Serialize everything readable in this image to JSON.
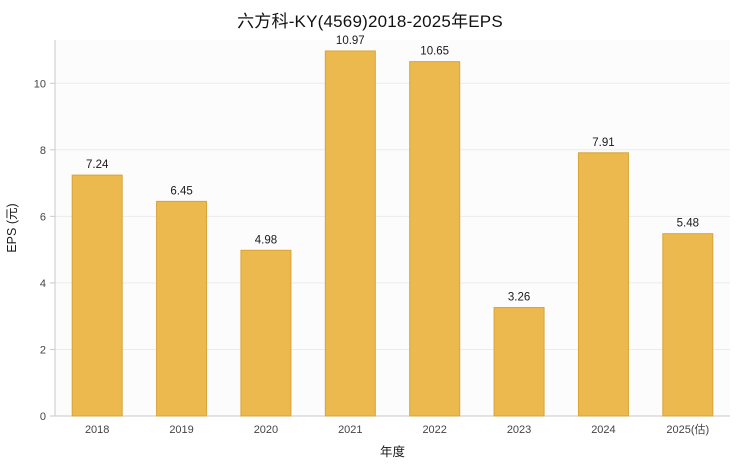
{
  "title": "六方科-KY(4569)2018-2025年EPS",
  "chart_data": {
    "type": "bar",
    "title": "六方科-KY(4569)2018-2025年EPS",
    "categories": [
      "2018",
      "2019",
      "2020",
      "2021",
      "2022",
      "2023",
      "2024",
      "2025(估)"
    ],
    "values": [
      7.24,
      6.45,
      4.98,
      10.97,
      10.65,
      3.26,
      7.91,
      5.48
    ],
    "value_labels": [
      "7.24",
      "6.45",
      "4.98",
      "10.97",
      "10.65",
      "3.26",
      "7.91",
      "5.48"
    ],
    "xlabel": "年度",
    "ylabel": "EPS (元)",
    "ylim": [
      0,
      11.3
    ],
    "yticks": [
      0,
      2,
      4,
      6,
      8,
      10
    ],
    "grid": true,
    "legend": false,
    "colors": {
      "bar": "#ecb94e",
      "bar_border": "#d8a43a",
      "grid": "#ebebeb",
      "axis": "#c9c9c9",
      "tick_text": "#444444",
      "label_text": "#1a1a1a",
      "plot_bg": "#fcfcfc"
    }
  }
}
